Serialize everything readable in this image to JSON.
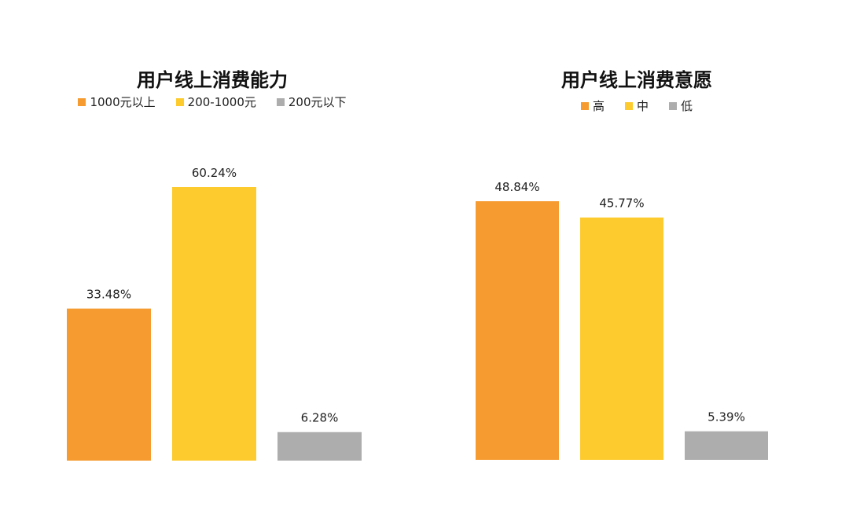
{
  "chart_data": [
    {
      "type": "bar",
      "title": "用户线上消费能力",
      "categories": [
        "1000元以上",
        "200-1000元",
        "200元以下"
      ],
      "values": [
        33.48,
        60.24,
        6.28
      ],
      "labels": [
        "33.48%",
        "60.24%",
        "6.28%"
      ],
      "colors": [
        "#F59B30",
        "#FDCB2E",
        "#ADADAD"
      ],
      "ylim": [
        0,
        60.24
      ],
      "legend": "top-center",
      "grid": false
    },
    {
      "type": "bar",
      "title": "用户线上消费意愿",
      "categories": [
        "高",
        "中",
        "低"
      ],
      "values": [
        48.84,
        45.77,
        5.39
      ],
      "labels": [
        "48.84%",
        "45.77%",
        "5.39%"
      ],
      "colors": [
        "#F59B30",
        "#FDCB2E",
        "#ADADAD"
      ],
      "ylim": [
        0,
        48.84
      ],
      "legend": "top-center",
      "grid": false
    }
  ]
}
